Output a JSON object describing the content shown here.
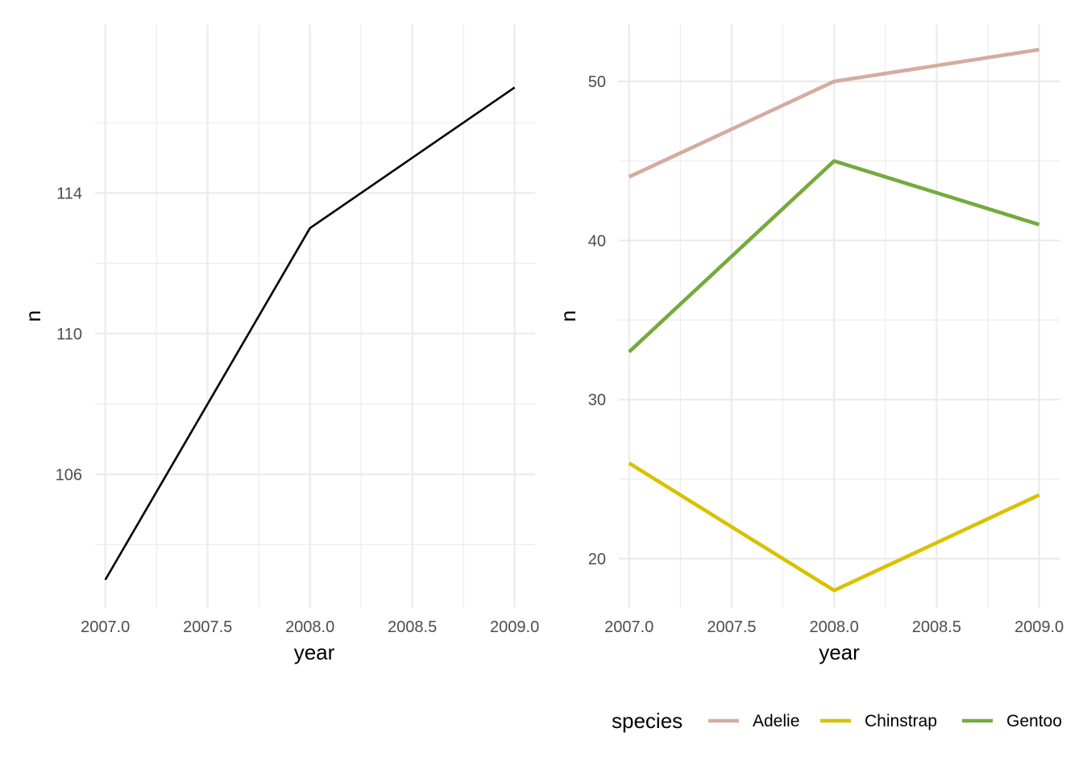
{
  "chart_data": [
    {
      "type": "line",
      "xlabel": "year",
      "ylabel": "n",
      "x": [
        2007,
        2008,
        2009
      ],
      "xlim": [
        2006.95,
        2009.1
      ],
      "ylim": [
        102.2,
        118.8
      ],
      "x_ticks": [
        2007.0,
        2007.5,
        2008.0,
        2008.5,
        2009.0
      ],
      "x_tick_labels": [
        "2007.0",
        "2007.5",
        "2008.0",
        "2008.5",
        "2009.0"
      ],
      "y_ticks": [
        106,
        110,
        114
      ],
      "y_tick_labels": [
        "106",
        "110",
        "114"
      ],
      "y_minor_ticks": [
        104,
        108,
        112,
        116
      ],
      "grid": true,
      "series": [
        {
          "values": [
            103,
            113,
            117
          ],
          "color": "#000000"
        }
      ]
    },
    {
      "type": "line",
      "xlabel": "year",
      "ylabel": "n",
      "x": [
        2007,
        2008,
        2009
      ],
      "xlim": [
        2006.95,
        2009.1
      ],
      "ylim": [
        16.9,
        53.6
      ],
      "x_ticks": [
        2007.0,
        2007.5,
        2008.0,
        2008.5,
        2009.0
      ],
      "x_tick_labels": [
        "2007.0",
        "2007.5",
        "2008.0",
        "2008.5",
        "2009.0"
      ],
      "y_ticks": [
        20,
        30,
        40,
        50
      ],
      "y_tick_labels": [
        "20",
        "30",
        "40",
        "50"
      ],
      "y_minor_ticks": [
        25,
        35,
        45
      ],
      "grid": true,
      "legend": {
        "title": "species",
        "position": "bottom"
      },
      "series": [
        {
          "name": "Adelie",
          "values": [
            44,
            50,
            52
          ],
          "color": "#d4aca0"
        },
        {
          "name": "Chinstrap",
          "values": [
            26,
            18,
            24
          ],
          "color": "#d9c100"
        },
        {
          "name": "Gentoo",
          "values": [
            33,
            45,
            41
          ],
          "color": "#75aa3d"
        }
      ]
    }
  ]
}
